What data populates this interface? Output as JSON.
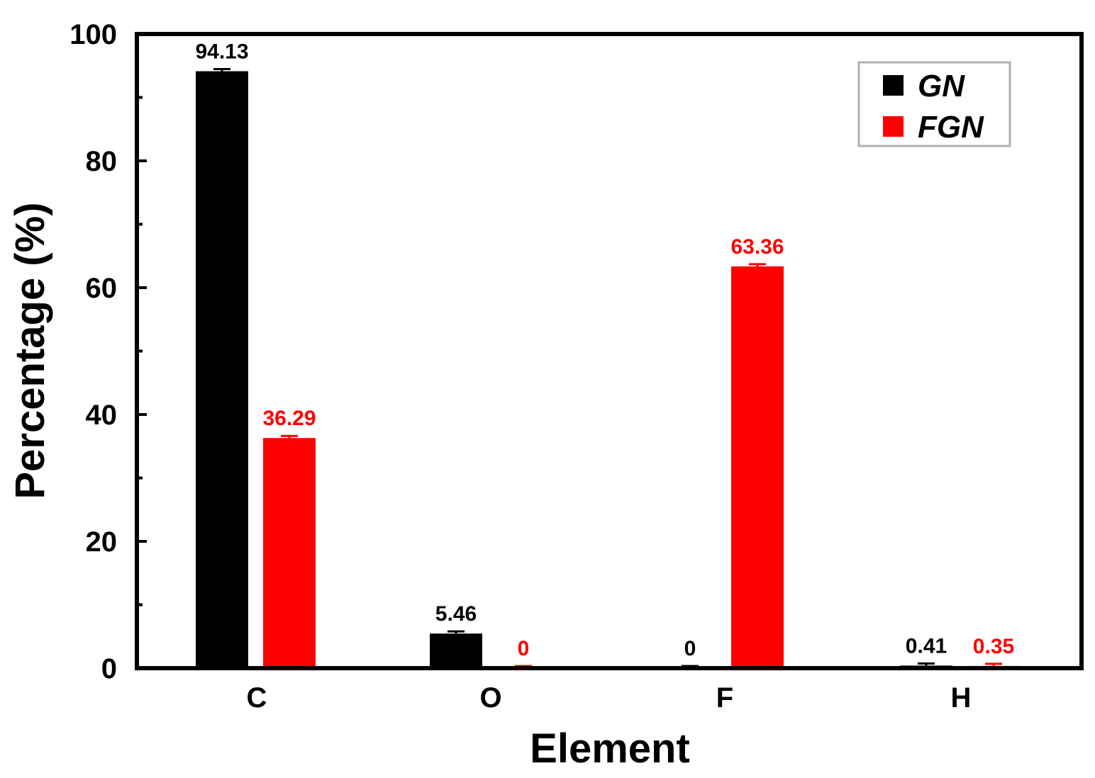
{
  "chart_data": {
    "type": "bar",
    "title": "",
    "xlabel": "Element",
    "ylabel": "Percentage (%)",
    "categories": [
      "C",
      "O",
      "F",
      "H"
    ],
    "ylim": [
      0,
      100
    ],
    "yticks": [
      "0",
      "20",
      "40",
      "60",
      "80",
      "100"
    ],
    "grid": false,
    "legend_position": "top-right",
    "series": [
      {
        "name": "GN",
        "color": "#000000",
        "values": [
          94.13,
          5.46,
          0,
          0.41
        ],
        "labels": [
          "94.13",
          "5.46",
          "0",
          "0.41"
        ]
      },
      {
        "name": "FGN",
        "color": "#ff0000",
        "values": [
          36.29,
          0,
          63.36,
          0.35
        ],
        "labels": [
          "36.29",
          "0",
          "63.36",
          "0.35"
        ]
      }
    ]
  }
}
